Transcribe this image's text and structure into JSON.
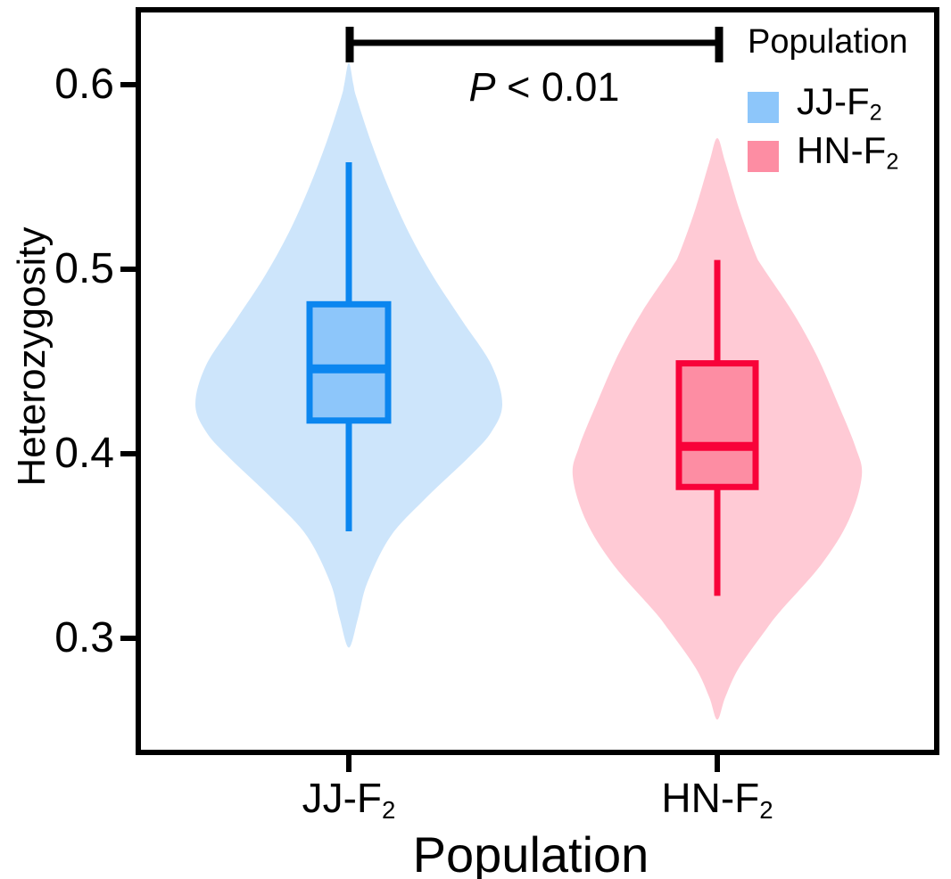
{
  "figure": {
    "background": "#ffffff",
    "panel_border_color": "#000000",
    "y_axis": {
      "title": "Heterozygosity",
      "ticks": [
        "0.6",
        "0.5",
        "0.4",
        "0.3"
      ]
    },
    "x_axis": {
      "title": "Population",
      "categories": [
        {
          "main": "JJ-F",
          "sub": "2"
        },
        {
          "main": "HN-F",
          "sub": "2"
        }
      ]
    },
    "annotation": {
      "p_italic": "P",
      "p_rest": " < 0.01"
    },
    "legend": {
      "title": "Population",
      "items": [
        {
          "main": "JJ-F",
          "sub": "2",
          "swatch_color": "#8dc6fa"
        },
        {
          "main": "HN-F",
          "sub": "2",
          "swatch_color": "#fd8da3"
        }
      ]
    }
  },
  "chart_data": {
    "type": "violin",
    "title": "",
    "xlabel": "Population",
    "ylabel": "Heterozygosity",
    "ylim": [
      0.25,
      0.64
    ],
    "yticks": [
      0.6,
      0.5,
      0.4,
      0.3
    ],
    "grid": false,
    "legend_position": "top-right-inside",
    "categories": [
      "JJ-F2",
      "HN-F2"
    ],
    "significance": {
      "label": "P < 0.01",
      "between": [
        "JJ-F2",
        "HN-F2"
      ]
    },
    "series": [
      {
        "name": "JJ-F2",
        "colors": {
          "violin_fill": "#cde5fb",
          "box_fill": "#8dc6fa",
          "stroke": "#0b86ef"
        },
        "box": {
          "whisker_low": 0.358,
          "q1": 0.418,
          "median": 0.446,
          "q3": 0.481,
          "whisker_high": 0.558
        },
        "violin_range": [
          0.295,
          0.612
        ],
        "violin_profile": [
          [
            0.6,
            0.03
          ],
          [
            0.593,
            0.05
          ],
          [
            0.569,
            0.145
          ],
          [
            0.544,
            0.26
          ],
          [
            0.52,
            0.39
          ],
          [
            0.496,
            0.55
          ],
          [
            0.472,
            0.74
          ],
          [
            0.448,
            0.93
          ],
          [
            0.427,
            1.0
          ],
          [
            0.412,
            0.93
          ],
          [
            0.398,
            0.78
          ],
          [
            0.375,
            0.49
          ],
          [
            0.355,
            0.27
          ],
          [
            0.33,
            0.12
          ],
          [
            0.311,
            0.06
          ]
        ]
      },
      {
        "name": "HN-F2",
        "colors": {
          "violin_fill": "#ffcad5",
          "box_fill": "#fd8da3",
          "stroke": "#f80239"
        },
        "box": {
          "whisker_low": 0.323,
          "q1": 0.382,
          "median": 0.404,
          "q3": 0.449,
          "whisker_high": 0.505
        },
        "violin_range": [
          0.256,
          0.571
        ],
        "violin_profile": [
          [
            0.558,
            0.055
          ],
          [
            0.533,
            0.15
          ],
          [
            0.509,
            0.26
          ],
          [
            0.501,
            0.315
          ],
          [
            0.477,
            0.52
          ],
          [
            0.453,
            0.69
          ],
          [
            0.428,
            0.83
          ],
          [
            0.404,
            0.955
          ],
          [
            0.388,
            1.0
          ],
          [
            0.364,
            0.91
          ],
          [
            0.34,
            0.72
          ],
          [
            0.315,
            0.44
          ],
          [
            0.305,
            0.34
          ],
          [
            0.284,
            0.15
          ],
          [
            0.268,
            0.055
          ]
        ]
      }
    ]
  }
}
